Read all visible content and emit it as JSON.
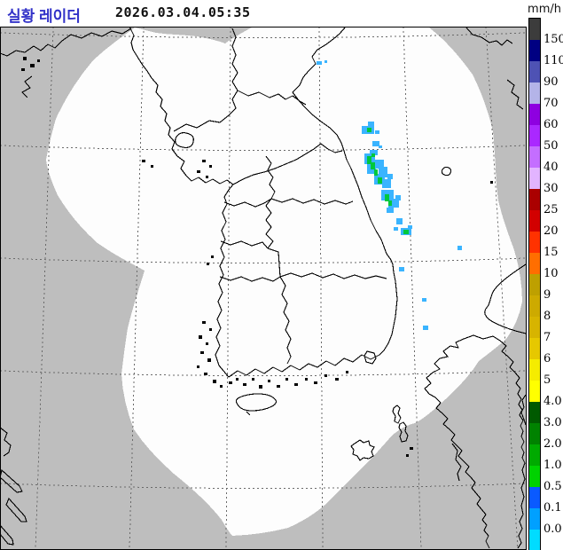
{
  "header": {
    "title": "실황 레이더",
    "datetime": "2026.03.04.05:35",
    "title_color": "#3232c8"
  },
  "legend": {
    "unit": "mm/h",
    "segments": [
      {
        "color": "#3c3c3c",
        "label": null
      },
      {
        "color": "#000082",
        "label": "150"
      },
      {
        "color": "#4e52b4",
        "label": "110"
      },
      {
        "color": "#b4b4e8",
        "label": "90"
      },
      {
        "color": "#8e00e0",
        "label": "70"
      },
      {
        "color": "#aa28ff",
        "label": "60"
      },
      {
        "color": "#c46eff",
        "label": "50"
      },
      {
        "color": "#e2b4ff",
        "label": "40"
      },
      {
        "color": "#aa0000",
        "label": "30"
      },
      {
        "color": "#d20000",
        "label": "25"
      },
      {
        "color": "#ff3200",
        "label": "20"
      },
      {
        "color": "#ff6e00",
        "label": "15"
      },
      {
        "color": "#bea000",
        "label": "10"
      },
      {
        "color": "#cdaa00",
        "label": "9"
      },
      {
        "color": "#d7b400",
        "label": "8"
      },
      {
        "color": "#e6c800",
        "label": "7"
      },
      {
        "color": "#f5ec00",
        "label": "6"
      },
      {
        "color": "#ffff00",
        "label": "5"
      },
      {
        "color": "#005a00",
        "label": "4.0"
      },
      {
        "color": "#008200",
        "label": "3.0"
      },
      {
        "color": "#00aa00",
        "label": "2.0"
      },
      {
        "color": "#00d200",
        "label": "1.0"
      },
      {
        "color": "#0a5aff",
        "label": "0.5"
      },
      {
        "color": "#00a0ff",
        "label": "0.1"
      },
      {
        "color": "#00dcff",
        "label": "0.0"
      },
      {
        "color": "#ffffff",
        "label": null
      }
    ]
  },
  "map": {
    "colors": {
      "out_of_range": "#bebebe",
      "radar_coverage": "#fdfdfd",
      "grid": "#6a6a6a",
      "coastline": "#000000",
      "echo_light": "#3ab4ff",
      "echo_moderate": "#00c83c"
    }
  }
}
